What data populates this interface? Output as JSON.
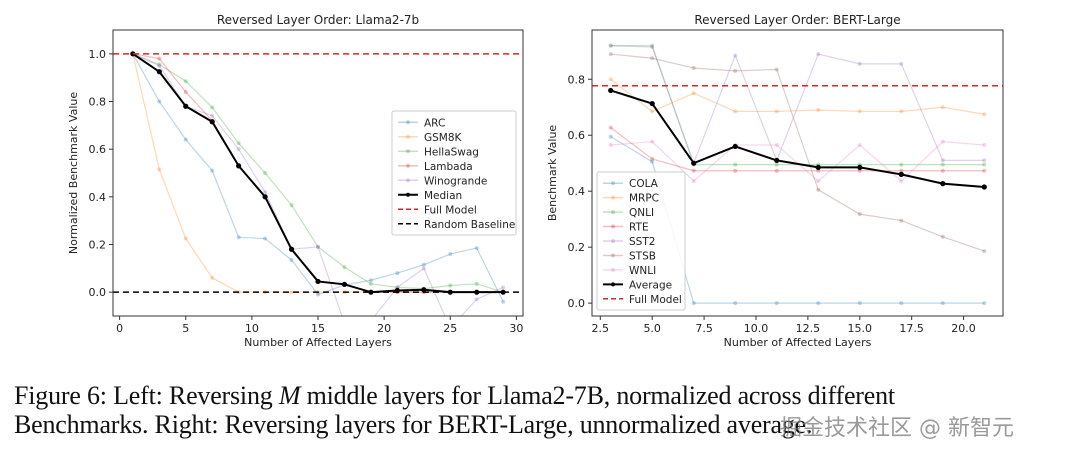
{
  "chart_data": [
    {
      "type": "line",
      "title": "Reversed Layer Order: Llama2-7b",
      "xlabel": "Number of Affected Layers",
      "ylabel": "Normalized Benchmark Value",
      "xlim": [
        -0.5,
        30.5
      ],
      "ylim": [
        -0.1,
        1.1
      ],
      "xticks": [
        0,
        5,
        10,
        15,
        20,
        25,
        30
      ],
      "xtick_labels": [
        "0",
        "5",
        "10",
        "15",
        "20",
        "25",
        "30"
      ],
      "yticks": [
        0.0,
        0.2,
        0.4,
        0.6,
        0.8,
        1.0
      ],
      "ytick_labels": [
        "0.0",
        "0.2",
        "0.4",
        "0.6",
        "0.8",
        "1.0"
      ],
      "legend_position": "center-right",
      "x": [
        1,
        3,
        5,
        7,
        9,
        11,
        13,
        15,
        17,
        19,
        21,
        23,
        25,
        27,
        29
      ],
      "series": [
        {
          "name": "ARC",
          "color": "#1f77b4",
          "values": [
            1.0,
            0.8,
            0.64,
            0.51,
            0.23,
            0.225,
            0.135,
            -0.01,
            0.03,
            0.05,
            0.08,
            0.115,
            0.16,
            0.185,
            -0.04
          ]
        },
        {
          "name": "GSM8K",
          "color": "#ff7f0e",
          "values": [
            1.0,
            0.515,
            0.225,
            0.06,
            0.0,
            0.0,
            0.0,
            0.0,
            0.0,
            0.0,
            0.0,
            0.0,
            0.0,
            0.0,
            0.0
          ]
        },
        {
          "name": "HellaSwag",
          "color": "#2ca02c",
          "values": [
            1.0,
            0.955,
            0.885,
            0.775,
            0.625,
            0.5,
            0.365,
            0.19,
            0.105,
            0.035,
            0.02,
            0.015,
            0.028,
            0.035,
            0.0
          ]
        },
        {
          "name": "Lambada",
          "color": "#d62728",
          "values": [
            1.0,
            0.98,
            0.84,
            0.72,
            0.53,
            0.4,
            0.18,
            0.045,
            0.03,
            0.0,
            0.0,
            0.0,
            0.0,
            0.0,
            0.0
          ]
        },
        {
          "name": "Winogrande",
          "color": "#9467bd",
          "values": [
            1.0,
            0.95,
            0.78,
            0.74,
            0.6,
            0.42,
            0.18,
            0.19,
            -0.13,
            -0.12,
            0.02,
            0.1,
            -0.15,
            -0.03,
            0.02
          ]
        },
        {
          "name": "Median",
          "color": "#000000",
          "bold": true,
          "values": [
            1.0,
            0.925,
            0.78,
            0.715,
            0.53,
            0.4,
            0.18,
            0.045,
            0.033,
            0.0,
            0.007,
            0.01,
            0.0,
            0.0,
            0.0
          ]
        }
      ],
      "hlines": [
        {
          "name": "Full Model",
          "color": "#d62728",
          "y": 1.0
        },
        {
          "name": "Random Baseline",
          "color": "#000000",
          "y": 0.0
        }
      ]
    },
    {
      "type": "line",
      "title": "Reversed Layer Order: BERT-Large",
      "xlabel": "Number of Affected Layers",
      "ylabel": "Benchmark Value",
      "xlim": [
        2.1,
        21.9
      ],
      "ylim": [
        -0.046,
        0.976
      ],
      "xticks": [
        2.5,
        5.0,
        7.5,
        10.0,
        12.5,
        15.0,
        17.5,
        20.0
      ],
      "xtick_labels": [
        "2.5",
        "5.0",
        "7.5",
        "10.0",
        "12.5",
        "15.0",
        "17.5",
        "20.0"
      ],
      "yticks": [
        0.0,
        0.2,
        0.4,
        0.6,
        0.8
      ],
      "ytick_labels": [
        "0.0",
        "0.2",
        "0.4",
        "0.6",
        "0.8"
      ],
      "legend_position": "lower-left",
      "x": [
        3,
        5,
        7,
        9,
        11,
        13,
        15,
        17,
        19,
        21
      ],
      "series": [
        {
          "name": "COLA",
          "color": "#1f77b4",
          "values": [
            0.595,
            0.505,
            0.0,
            0.0,
            0.0,
            0.0,
            0.0,
            0.0,
            0.0,
            0.0
          ]
        },
        {
          "name": "MRPC",
          "color": "#ff7f0e",
          "values": [
            0.8,
            0.685,
            0.75,
            0.685,
            0.685,
            0.69,
            0.685,
            0.685,
            0.7,
            0.675
          ]
        },
        {
          "name": "QNLI",
          "color": "#2ca02c",
          "values": [
            0.92,
            0.92,
            0.495,
            0.495,
            0.495,
            0.495,
            0.495,
            0.495,
            0.495,
            0.495
          ]
        },
        {
          "name": "RTE",
          "color": "#d62728",
          "values": [
            0.627,
            0.515,
            0.473,
            0.473,
            0.473,
            0.473,
            0.473,
            0.473,
            0.473,
            0.473
          ]
        },
        {
          "name": "SST2",
          "color": "#9467bd",
          "values": [
            0.92,
            0.915,
            0.5,
            0.885,
            0.51,
            0.89,
            0.855,
            0.855,
            0.51,
            0.51
          ]
        },
        {
          "name": "STSB",
          "color": "#8c564b",
          "values": [
            0.89,
            0.875,
            0.84,
            0.83,
            0.835,
            0.405,
            0.318,
            0.295,
            0.237,
            0.186
          ]
        },
        {
          "name": "WNLI",
          "color": "#e377c2",
          "values": [
            0.565,
            0.577,
            0.436,
            0.565,
            0.565,
            0.436,
            0.565,
            0.436,
            0.577,
            0.565
          ]
        },
        {
          "name": "Average",
          "color": "#000000",
          "bold": true,
          "values": [
            0.76,
            0.713,
            0.5,
            0.56,
            0.51,
            0.485,
            0.485,
            0.46,
            0.427,
            0.415
          ]
        }
      ],
      "hlines": [
        {
          "name": "Full Model",
          "color": "#d62728",
          "y": 0.777
        }
      ]
    }
  ],
  "caption": {
    "line1_a": "Figure 6:  Left:  Reversing ",
    "line1_italic": "M",
    "line1_b": " middle layers for Llama2-7B, normalized across different",
    "line2": "Benchmarks. Right: Reversing layers for BERT-Large, unnormalized average."
  },
  "watermark": "掘金技术社区 @ 新智元"
}
